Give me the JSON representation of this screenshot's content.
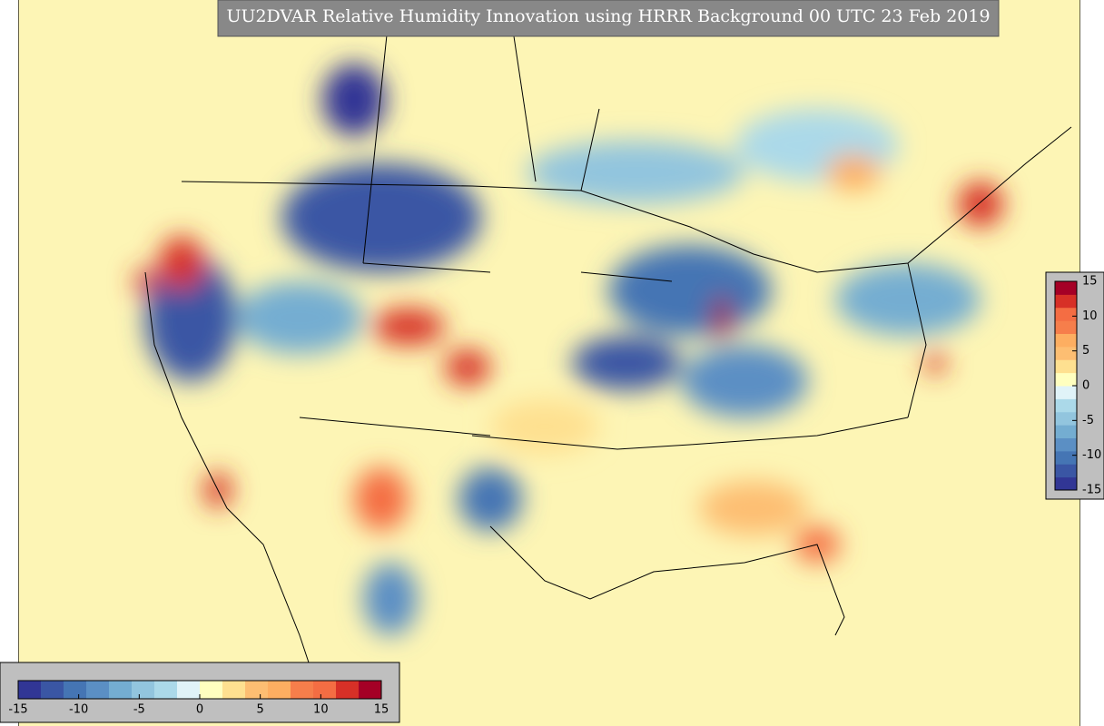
{
  "title": "UU2DVAR Relative Humidity Innovation using HRRR Background 00 UTC 23 Feb 2019",
  "colorbar": {
    "range": [
      -15,
      15
    ],
    "ticks": [
      -15,
      -10,
      -5,
      0,
      5,
      10,
      15
    ],
    "colors": [
      "#313695",
      "#3a56a4",
      "#4575b4",
      "#5b8fc4",
      "#74add1",
      "#92c5de",
      "#abd9e9",
      "#e0f3f8",
      "#ffffbf",
      "#fee090",
      "#fdbe72",
      "#fdae61",
      "#f67e4b",
      "#f46d43",
      "#d73027",
      "#a50026"
    ]
  }
}
